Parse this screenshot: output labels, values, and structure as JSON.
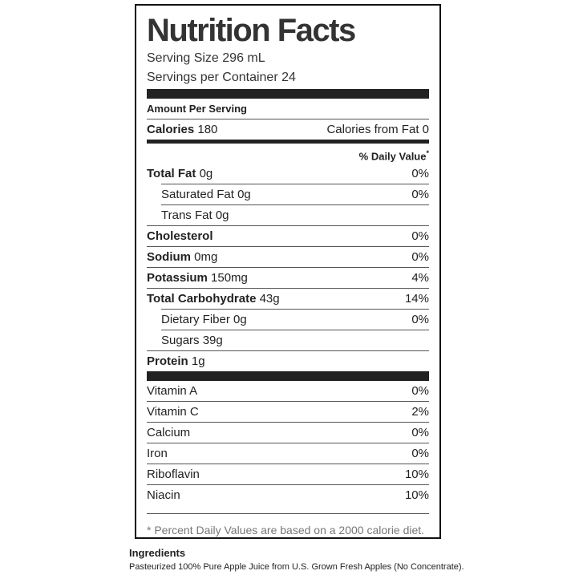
{
  "label": {
    "title": "Nutrition Facts",
    "serving_size": "Serving Size 296 mL",
    "servings_per_container": "Servings per Container 24",
    "amount_per_serving": "Amount Per Serving",
    "calories": {
      "name": "Calories",
      "amount": "180"
    },
    "calories_from_fat": "Calories from Fat 0",
    "daily_value_header": {
      "text": "% Daily Value",
      "marker": "*"
    },
    "nutrients": [
      {
        "name": "Total Fat",
        "amount": "0g",
        "dv": "0%"
      },
      {
        "name": "Saturated Fat",
        "amount": "0g",
        "dv": "0%"
      },
      {
        "name": "Trans Fat",
        "amount": "0g"
      },
      {
        "name": "Cholesterol",
        "dv": "0%"
      },
      {
        "name": "Sodium",
        "amount": "0mg",
        "dv": "0%"
      },
      {
        "name": "Potassium",
        "amount": "150mg",
        "dv": "4%"
      },
      {
        "name": "Total Carbohydrate",
        "amount": "43g",
        "dv": "14%"
      },
      {
        "name": "Dietary Fiber",
        "amount": "0g",
        "dv": "0%"
      },
      {
        "name": "Sugars",
        "amount": "39g"
      },
      {
        "name": "Protein",
        "amount": "1g"
      }
    ],
    "vitamins": [
      {
        "name": "Vitamin A",
        "dv": "0%"
      },
      {
        "name": "Vitamin C",
        "dv": "2%"
      },
      {
        "name": "Calcium",
        "dv": "0%"
      },
      {
        "name": "Iron",
        "dv": "0%"
      },
      {
        "name": "Riboflavin",
        "dv": "10%"
      },
      {
        "name": "Niacin",
        "dv": "10%"
      }
    ],
    "footnote": "* Percent Daily Values are based on a 2000 calorie diet."
  },
  "ingredients": {
    "heading": "Ingredients",
    "text": "Pasteurized 100% Pure Apple Juice from U.S. Grown Fresh Apples (No Concentrate)."
  }
}
